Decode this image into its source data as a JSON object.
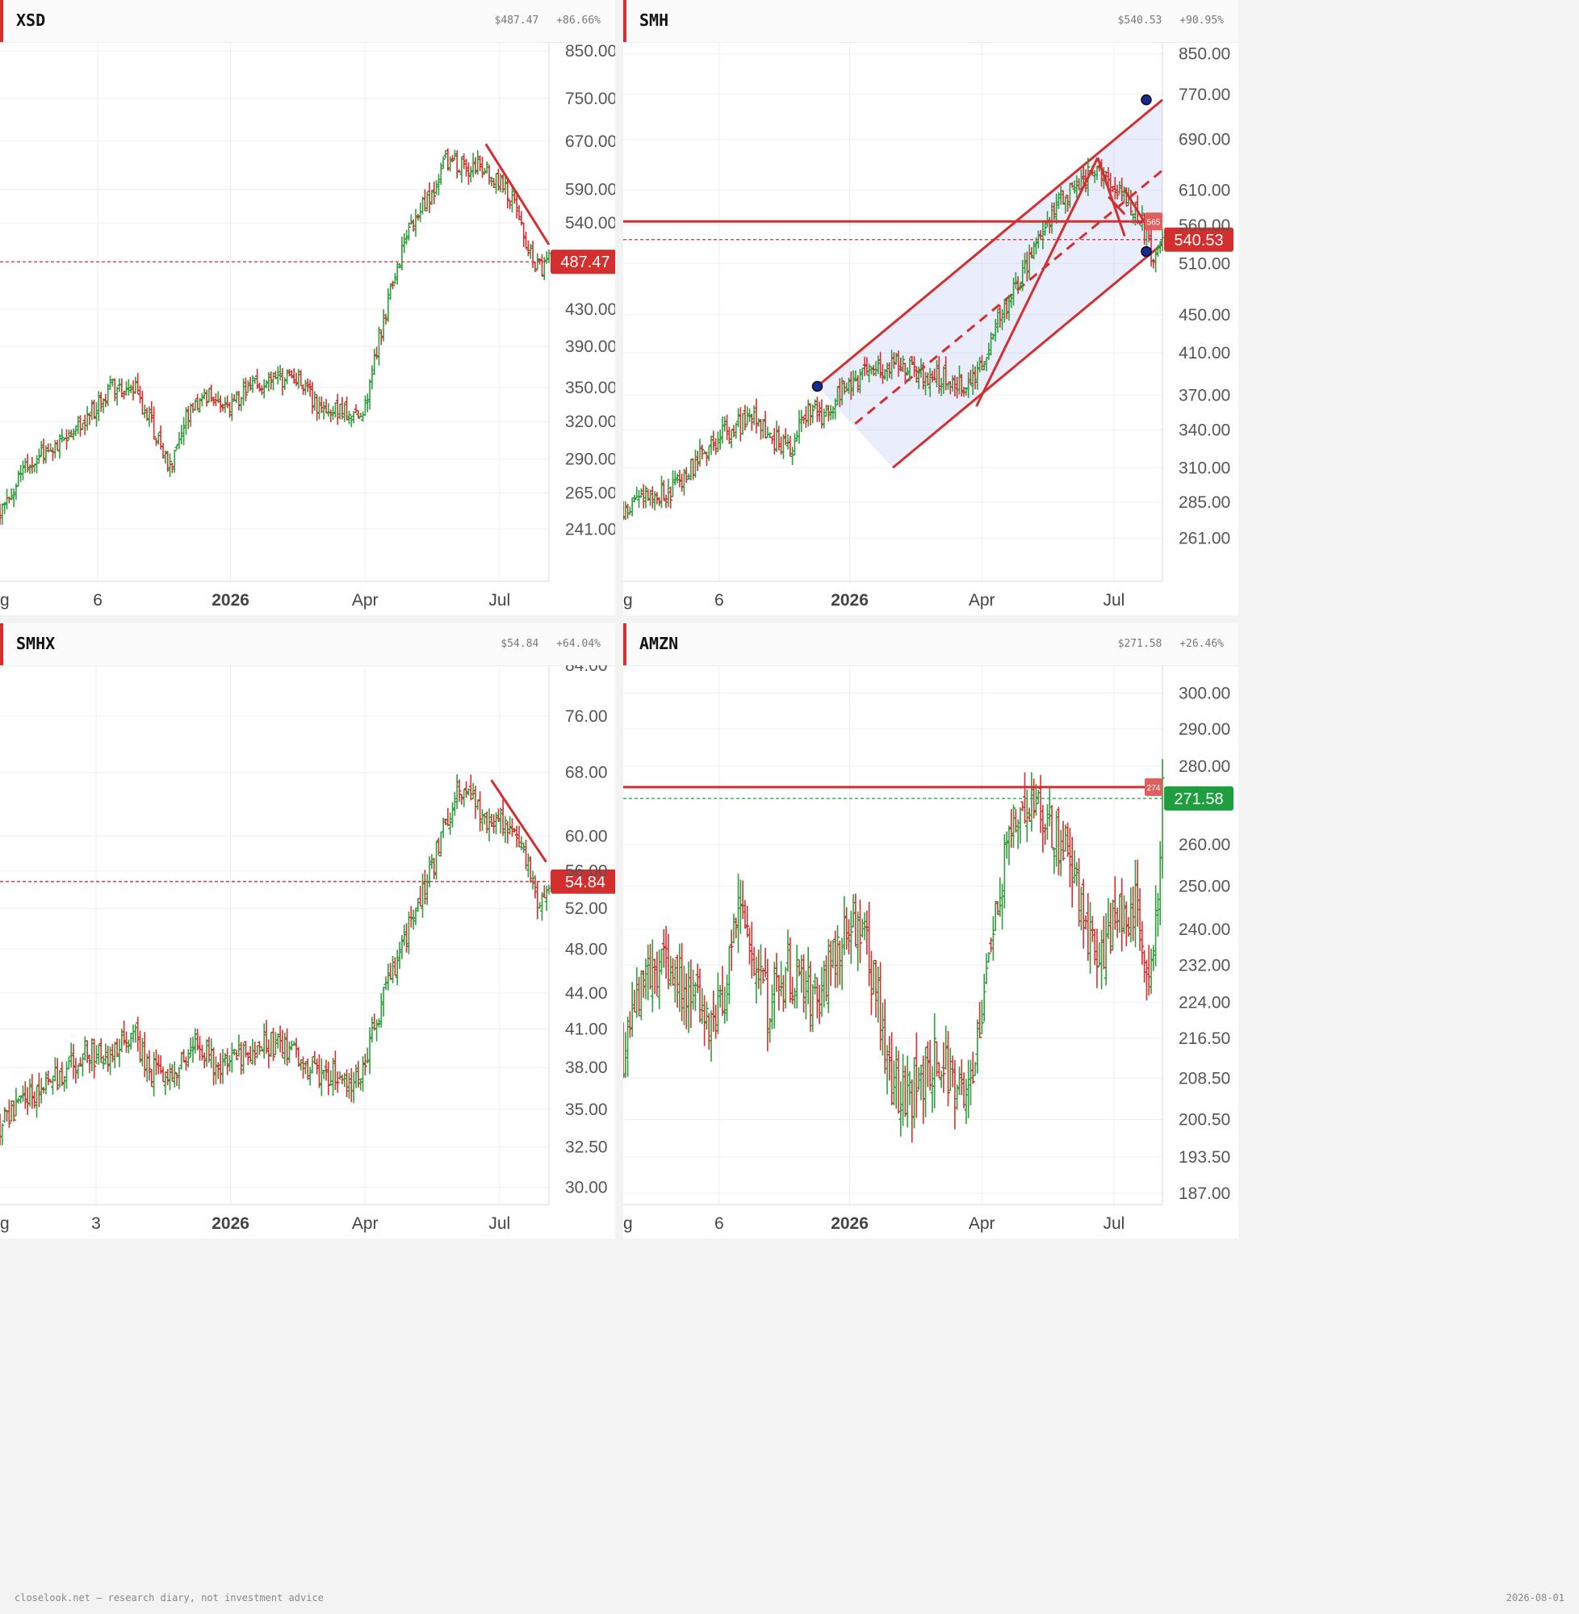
{
  "panels": [
    {
      "ticker": "XSD",
      "price_text": "$487.47",
      "change_text": "+86.66%",
      "chart_data": {
        "type": "ohlc",
        "scale": "log",
        "ylim": [
          210,
          870
        ],
        "y_ticks": [
          "850.00",
          "750.00",
          "670.00",
          "590.00",
          "540.00",
          "430.00",
          "390.00",
          "350.00",
          "320.00",
          "290.00",
          "265.00",
          "241.00"
        ],
        "x_ticks": [
          {
            "label": "ug",
            "pos": 0.0,
            "bold": false
          },
          {
            "label": "6",
            "pos": 0.178,
            "bold": false
          },
          {
            "label": "2026",
            "pos": 0.42,
            "bold": true
          },
          {
            "label": "Apr",
            "pos": 0.665,
            "bold": false
          },
          {
            "label": "Jul",
            "pos": 0.91,
            "bold": false
          }
        ],
        "path": [
          [
            0,
            256
          ],
          [
            0.05,
            283
          ],
          [
            0.1,
            302
          ],
          [
            0.15,
            320
          ],
          [
            0.2,
            348
          ],
          [
            0.24,
            353
          ],
          [
            0.28,
            315
          ],
          [
            0.31,
            284
          ],
          [
            0.34,
            322
          ],
          [
            0.38,
            342
          ],
          [
            0.42,
            333
          ],
          [
            0.46,
            350
          ],
          [
            0.5,
            358
          ],
          [
            0.53,
            356
          ],
          [
            0.55,
            353
          ],
          [
            0.58,
            332
          ],
          [
            0.62,
            328
          ],
          [
            0.66,
            325
          ],
          [
            0.68,
            372
          ],
          [
            0.7,
            420
          ],
          [
            0.73,
            500
          ],
          [
            0.76,
            560
          ],
          [
            0.79,
            580
          ],
          [
            0.81,
            635
          ],
          [
            0.84,
            625
          ],
          [
            0.87,
            628
          ],
          [
            0.9,
            610
          ],
          [
            0.93,
            585
          ],
          [
            0.95,
            530
          ],
          [
            0.98,
            480
          ],
          [
            1.0,
            487.47
          ]
        ],
        "last_price": 487.47,
        "last_label": "487.47",
        "up_color": "#2e9e3b",
        "down_color": "#d32f2f",
        "line_color": "#d32f2f",
        "trendlines": [
          {
            "x1": 0.885,
            "y1": 665,
            "x2": 1.0,
            "y2": 510,
            "dashed": false
          }
        ],
        "hlines": [],
        "channel": null
      }
    },
    {
      "ticker": "SMH",
      "price_text": "$540.53",
      "change_text": "+90.95%",
      "chart_data": {
        "type": "ohlc",
        "scale": "log",
        "ylim": [
          235,
          875
        ],
        "y_ticks": [
          "850.00",
          "770.00",
          "690.00",
          "610.00",
          "560.00",
          "510.00",
          "450.00",
          "410.00",
          "370.00",
          "340.00",
          "310.00",
          "285.00",
          "261.00"
        ],
        "x_ticks": [
          {
            "label": "ug",
            "pos": 0.0,
            "bold": false
          },
          {
            "label": "6",
            "pos": 0.178,
            "bold": false
          },
          {
            "label": "2026",
            "pos": 0.42,
            "bold": true
          },
          {
            "label": "Apr",
            "pos": 0.665,
            "bold": false
          },
          {
            "label": "Jul",
            "pos": 0.91,
            "bold": false
          }
        ],
        "path": [
          [
            0,
            282
          ],
          [
            0.05,
            292
          ],
          [
            0.08,
            290
          ],
          [
            0.12,
            306
          ],
          [
            0.16,
            328
          ],
          [
            0.2,
            342
          ],
          [
            0.24,
            350
          ],
          [
            0.27,
            335
          ],
          [
            0.31,
            325
          ],
          [
            0.34,
            355
          ],
          [
            0.37,
            352
          ],
          [
            0.4,
            370
          ],
          [
            0.42,
            378
          ],
          [
            0.45,
            390
          ],
          [
            0.48,
            395
          ],
          [
            0.52,
            400
          ],
          [
            0.56,
            388
          ],
          [
            0.6,
            385
          ],
          [
            0.64,
            378
          ],
          [
            0.66,
            390
          ],
          [
            0.69,
            440
          ],
          [
            0.72,
            470
          ],
          [
            0.75,
            510
          ],
          [
            0.78,
            550
          ],
          [
            0.81,
            595
          ],
          [
            0.84,
            620
          ],
          [
            0.87,
            640
          ],
          [
            0.9,
            620
          ],
          [
            0.93,
            595
          ],
          [
            0.96,
            570
          ],
          [
            0.98,
            520
          ],
          [
            1.0,
            540.53
          ]
        ],
        "last_price": 540.53,
        "last_label": "540.53",
        "up_color": "#2e9e3b",
        "down_color": "#d32f2f",
        "line_color": "#d32f2f",
        "trendlines": [
          {
            "x1": 0.655,
            "y1": 360,
            "x2": 0.88,
            "y2": 660,
            "dashed": false
          },
          {
            "x1": 0.88,
            "y1": 660,
            "x2": 0.93,
            "y2": 545,
            "dashed": false
          },
          {
            "x1": 0.9,
            "y1": 600,
            "x2": 0.93,
            "y2": 575,
            "dashed": false
          },
          {
            "x1": 0.93,
            "y1": 610,
            "x2": 0.97,
            "y2": 560,
            "dashed": false
          }
        ],
        "hlines": [
          {
            "y": 565,
            "label": "565"
          }
        ],
        "channel": {
          "upper": [
            [
              0.36,
              378
            ],
            [
              1.0,
              760
            ]
          ],
          "middle": [
            [
              0.43,
              345
            ],
            [
              1.0,
              640
            ]
          ],
          "lower": [
            [
              0.5,
              310
            ],
            [
              1.0,
              535
            ]
          ],
          "anchors": [
            [
              0.36,
              378
            ],
            [
              0.97,
              760
            ],
            [
              0.97,
              525
            ]
          ]
        }
      }
    },
    {
      "ticker": "SMHX",
      "price_text": "$54.84",
      "change_text": "+64.04%",
      "chart_data": {
        "type": "ohlc",
        "scale": "log",
        "ylim": [
          29,
          84
        ],
        "y_ticks": [
          "84.00",
          "76.00",
          "68.00",
          "60.00",
          "56.00",
          "52.00",
          "48.00",
          "44.00",
          "41.00",
          "38.00",
          "35.00",
          "32.50",
          "30.00"
        ],
        "x_ticks": [
          {
            "label": "ug",
            "pos": 0.0,
            "bold": false
          },
          {
            "label": "3",
            "pos": 0.175,
            "bold": false
          },
          {
            "label": "2026",
            "pos": 0.42,
            "bold": true
          },
          {
            "label": "Apr",
            "pos": 0.665,
            "bold": false
          },
          {
            "label": "Jul",
            "pos": 0.91,
            "bold": false
          }
        ],
        "path": [
          [
            0,
            34
          ],
          [
            0.04,
            35.5
          ],
          [
            0.08,
            36.5
          ],
          [
            0.12,
            38
          ],
          [
            0.16,
            39
          ],
          [
            0.2,
            38.5
          ],
          [
            0.24,
            41
          ],
          [
            0.27,
            38
          ],
          [
            0.3,
            37
          ],
          [
            0.33,
            38.5
          ],
          [
            0.36,
            39.5
          ],
          [
            0.4,
            38
          ],
          [
            0.44,
            39
          ],
          [
            0.48,
            40
          ],
          [
            0.52,
            39.5
          ],
          [
            0.55,
            38.5
          ],
          [
            0.58,
            37.5
          ],
          [
            0.62,
            37.5
          ],
          [
            0.65,
            37
          ],
          [
            0.67,
            39
          ],
          [
            0.7,
            44
          ],
          [
            0.73,
            48
          ],
          [
            0.76,
            52
          ],
          [
            0.79,
            57
          ],
          [
            0.82,
            63
          ],
          [
            0.84,
            66
          ],
          [
            0.87,
            63
          ],
          [
            0.9,
            62
          ],
          [
            0.93,
            60
          ],
          [
            0.96,
            57
          ],
          [
            0.98,
            52
          ],
          [
            1.0,
            54.84
          ]
        ],
        "last_price": 54.84,
        "last_label": "54.84",
        "up_color": "#2e9e3b",
        "down_color": "#d32f2f",
        "line_color": "#d32f2f",
        "trendlines": [
          {
            "x1": 0.895,
            "y1": 67,
            "x2": 0.995,
            "y2": 57,
            "dashed": false
          }
        ],
        "hlines": [],
        "channel": null
      }
    },
    {
      "ticker": "AMZN",
      "price_text": "$271.58",
      "change_text": "+26.46%",
      "chart_data": {
        "type": "ohlc",
        "scale": "log",
        "ylim": [
          185,
          308
        ],
        "y_ticks": [
          "300.00",
          "290.00",
          "280.00",
          "260.00",
          "250.00",
          "240.00",
          "232.00",
          "224.00",
          "216.50",
          "208.50",
          "200.50",
          "193.50",
          "187.00"
        ],
        "x_ticks": [
          {
            "label": "ug",
            "pos": 0.0,
            "bold": false
          },
          {
            "label": "6",
            "pos": 0.178,
            "bold": false
          },
          {
            "label": "2026",
            "pos": 0.42,
            "bold": true
          },
          {
            "label": "Apr",
            "pos": 0.665,
            "bold": false
          },
          {
            "label": "Jul",
            "pos": 0.91,
            "bold": false
          }
        ],
        "path": [
          [
            0,
            214
          ],
          [
            0.03,
            228
          ],
          [
            0.06,
            232
          ],
          [
            0.1,
            233
          ],
          [
            0.13,
            224
          ],
          [
            0.16,
            218
          ],
          [
            0.19,
            228
          ],
          [
            0.21,
            245
          ],
          [
            0.24,
            235
          ],
          [
            0.27,
            222
          ],
          [
            0.3,
            230
          ],
          [
            0.33,
            228
          ],
          [
            0.36,
            224
          ],
          [
            0.39,
            232
          ],
          [
            0.42,
            242
          ],
          [
            0.45,
            236
          ],
          [
            0.47,
            226
          ],
          [
            0.5,
            206
          ],
          [
            0.53,
            204
          ],
          [
            0.56,
            210
          ],
          [
            0.59,
            212
          ],
          [
            0.62,
            205
          ],
          [
            0.65,
            212
          ],
          [
            0.68,
            235
          ],
          [
            0.71,
            258
          ],
          [
            0.74,
            272
          ],
          [
            0.77,
            268
          ],
          [
            0.8,
            264
          ],
          [
            0.83,
            256
          ],
          [
            0.86,
            240
          ],
          [
            0.89,
            236
          ],
          [
            0.92,
            242
          ],
          [
            0.95,
            246
          ],
          [
            0.97,
            228
          ],
          [
            0.985,
            232
          ],
          [
            1.0,
            271.58
          ]
        ],
        "last_price": 271.58,
        "last_label": "271.58",
        "up_color": "#2e9e3b",
        "down_color": "#d32f2f",
        "line_color": "#d32f2f",
        "last_color": "#1e9e3e",
        "trendlines": [],
        "hlines": [
          {
            "y": 274.5,
            "label": "274"
          }
        ],
        "channel": null
      }
    }
  ],
  "footer": {
    "left": "closelook.net — research diary, not investment advice",
    "right": "2026-08-01"
  }
}
